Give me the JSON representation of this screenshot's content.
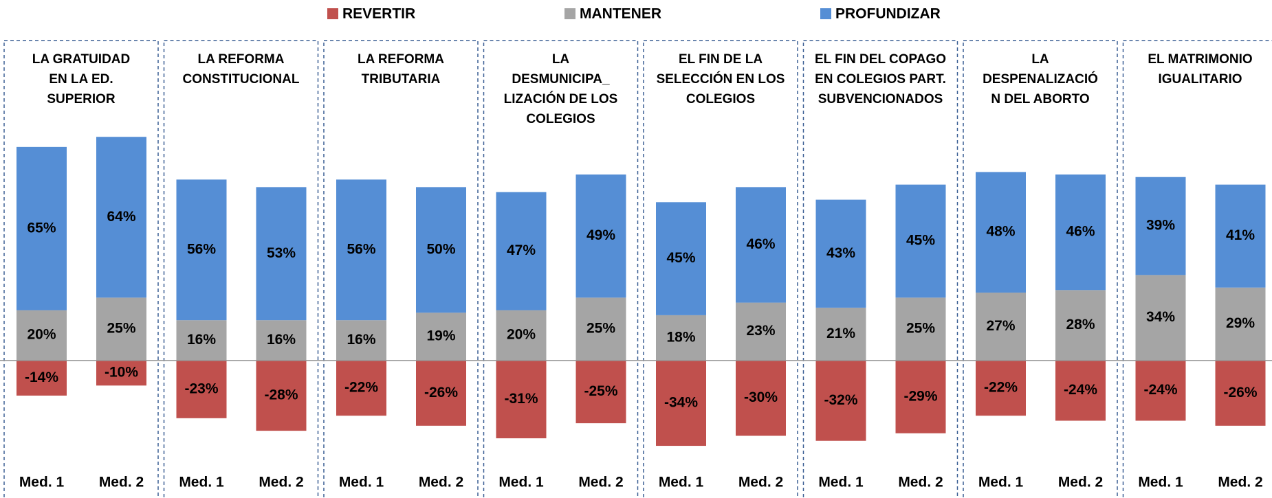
{
  "chart_data": {
    "type": "bar",
    "groups": [
      "LA GRATUIDAD\nEN LA ED.\nSUPERIOR",
      "LA REFORMA\nCONSTITUCIONAL",
      "LA REFORMA\nTRIBUTARIA",
      "LA\nDESMUNICIPA_\nLIZACIÓN DE LOS\nCOLEGIOS",
      "EL FIN DE LA\nSELECCIÓN EN LOS\nCOLEGIOS",
      "EL FIN DEL COPAGO\nEN COLEGIOS PART.\nSUBVENCIONADOS",
      "LA\nDESPENALIZACIÓ\nN DEL ABORTO",
      "EL MATRIMONIO\nIGUALITARIO"
    ],
    "categories": [
      "Med. 1",
      "Med. 2",
      "Med. 1",
      "Med. 2",
      "Med. 1",
      "Med. 2",
      "Med. 1",
      "Med. 2",
      "Med. 1",
      "Med. 2",
      "Med. 1",
      "Med. 2",
      "Med. 1",
      "Med. 2",
      "Med. 1",
      "Med. 2"
    ],
    "ylim": [
      -40,
      100
    ],
    "series": [
      {
        "name": "REVERTIR",
        "color": "#c0504d",
        "values": [
          -14,
          -10,
          -23,
          -28,
          -22,
          -26,
          -31,
          -25,
          -34,
          -30,
          -32,
          -29,
          -22,
          -24,
          -24,
          -26
        ],
        "value_labels": [
          "-14%",
          "-10%",
          "-23%",
          "-28%",
          "-22%",
          "-26%",
          "-31%",
          "-25%",
          "-34%",
          "-30%",
          "-32%",
          "-29%",
          "-22%",
          "-24%",
          "-24%",
          "-26%"
        ]
      },
      {
        "name": "MANTENER",
        "color": "#a5a5a5",
        "values": [
          20,
          25,
          16,
          16,
          16,
          19,
          20,
          25,
          18,
          23,
          21,
          25,
          27,
          28,
          34,
          29
        ],
        "value_labels": [
          "20%",
          "25%",
          "16%",
          "16%",
          "16%",
          "19%",
          "20%",
          "25%",
          "18%",
          "23%",
          "21%",
          "25%",
          "27%",
          "28%",
          "34%",
          "29%"
        ]
      },
      {
        "name": "PROFUNDIZAR",
        "color": "#558ed5",
        "values": [
          65,
          64,
          56,
          53,
          56,
          50,
          47,
          49,
          45,
          46,
          43,
          45,
          48,
          46,
          39,
          41
        ],
        "value_labels": [
          "65%",
          "64%",
          "56%",
          "53%",
          "56%",
          "50%",
          "47%",
          "49%",
          "45%",
          "46%",
          "43%",
          "45%",
          "48%",
          "46%",
          "39%",
          "41%"
        ]
      }
    ]
  }
}
